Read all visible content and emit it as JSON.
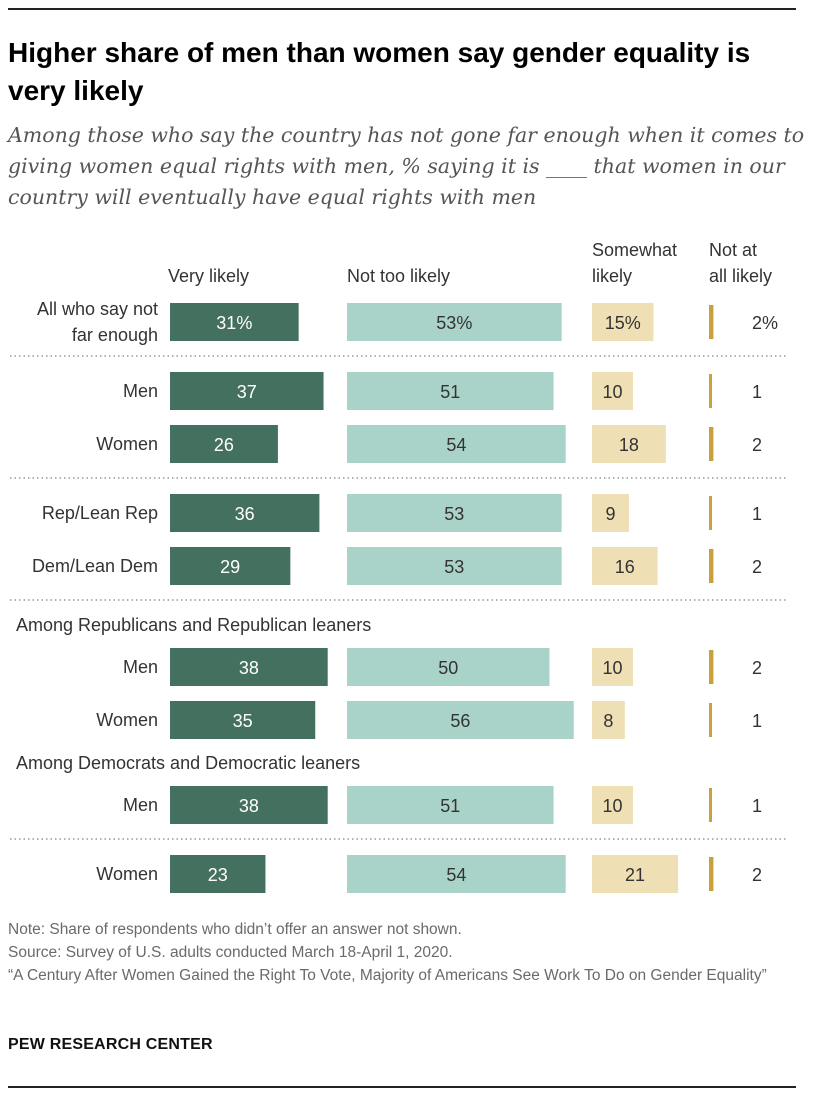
{
  "title": "Higher share of men than women say gender equality is very likely",
  "subtitle": "Among those who say the country has not gone far enough when it comes to giving women equal rights with men, % saying it is ____ that women in our country will eventually have equal rights with men",
  "notes": {
    "note": "Note: Share of respondents who didn’t offer an answer not shown.",
    "source": "Source: Survey of U.S. adults conducted March 18-April 1, 2020.",
    "report": "“A Century After Women Gained the Right To Vote, Majority of Americans See Work To Do on Gender Equality”"
  },
  "brand": "PEW RESEARCH CENTER",
  "chart_data": {
    "type": "bar",
    "stacked": false,
    "series": [
      {
        "name": "Very likely",
        "label_lines": [
          "Very likely"
        ],
        "color": "#44705f",
        "label_color": "#ffffff"
      },
      {
        "name": "Not too likely",
        "label_lines": [
          "Not too likely"
        ],
        "color": "#a9d3c8",
        "label_color": "#333333"
      },
      {
        "name": "Somewhat likely",
        "label_lines": [
          "Somewhat",
          "likely"
        ],
        "color": "#efdfb4",
        "label_color": "#333333"
      },
      {
        "name": "Not at all likely",
        "label_lines": [
          "Not at",
          "all likely"
        ],
        "color": "#c9a13c",
        "label_color": "#333333"
      }
    ],
    "rows": [
      {
        "label_lines": [
          "All who say not",
          "far enough"
        ],
        "values": [
          31,
          53,
          15,
          2
        ],
        "value_labels": [
          "31%",
          "53%",
          "15%",
          "2%"
        ]
      },
      {
        "label_lines": [
          "Men"
        ],
        "values": [
          37,
          51,
          10,
          1
        ],
        "value_labels": [
          "37",
          "51",
          "10",
          "1"
        ]
      },
      {
        "label_lines": [
          "Women"
        ],
        "values": [
          26,
          54,
          18,
          2
        ],
        "value_labels": [
          "26",
          "54",
          "18",
          "2"
        ]
      },
      {
        "label_lines": [
          "Rep/Lean Rep"
        ],
        "values": [
          36,
          53,
          9,
          1
        ],
        "value_labels": [
          "36",
          "53",
          "9",
          "1"
        ]
      },
      {
        "label_lines": [
          "Dem/Lean Dem"
        ],
        "values": [
          29,
          53,
          16,
          2
        ],
        "value_labels": [
          "29",
          "53",
          "16",
          "2"
        ]
      },
      {
        "section": "Among Republicans and Republican leaners"
      },
      {
        "label_lines": [
          "Men"
        ],
        "values": [
          38,
          50,
          10,
          2
        ],
        "value_labels": [
          "38",
          "50",
          "10",
          "2"
        ]
      },
      {
        "label_lines": [
          "Women"
        ],
        "values": [
          35,
          56,
          8,
          1
        ],
        "value_labels": [
          "35",
          "56",
          "8",
          "1"
        ]
      },
      {
        "section": "Among Democrats and Democratic leaners"
      },
      {
        "label_lines": [
          "Men"
        ],
        "values": [
          38,
          51,
          10,
          1
        ],
        "value_labels": [
          "38",
          "51",
          "10",
          "1"
        ]
      },
      {
        "label_lines": [
          "Women"
        ],
        "values": [
          23,
          54,
          21,
          2
        ],
        "value_labels": [
          "23",
          "54",
          "21",
          "2"
        ]
      }
    ]
  }
}
